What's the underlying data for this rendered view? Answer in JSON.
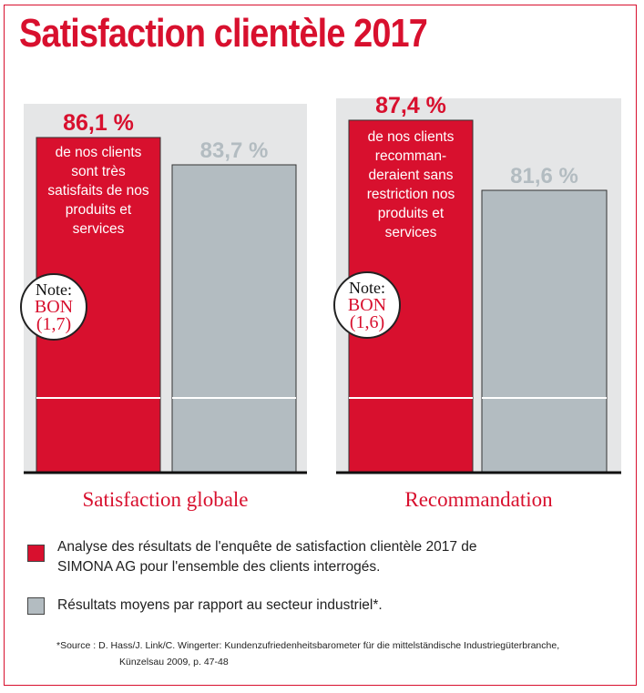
{
  "title": "Satisfaction clientèle 2017",
  "colors": {
    "simona": "#d8102e",
    "industry": "#b3bcc1",
    "panel": "#e5e6e7"
  },
  "chart_data": {
    "type": "bar",
    "categories": [
      "Satisfaction globale",
      "Recommandation"
    ],
    "series": [
      {
        "values": [
          86.1,
          87.4
        ]
      },
      {
        "values": [
          83.7,
          81.6
        ]
      }
    ],
    "value_labels": [
      [
        "86,1 %",
        "83,7 %"
      ],
      [
        "87,4 %",
        "81,6 %"
      ]
    ],
    "descriptions": [
      [
        "de nos clients",
        "sont très",
        "satisfaits de nos",
        "produits et",
        "services"
      ],
      [
        "de nos clients",
        "recomman-",
        "deraient sans",
        "restriction nos",
        "produits et",
        "services"
      ]
    ],
    "notes": [
      {
        "label": "Note:",
        "grade": "BON",
        "score": "(1,7)"
      },
      {
        "label": "Note:",
        "grade": "BON",
        "score": "(1,6)"
      }
    ],
    "axis_break": true
  },
  "legend": [
    {
      "text_lines": [
        "Analyse des résultats de l'enquête de satisfaction clientèle 2017 de",
        "SIMONA AG pour l'ensemble des clients interrogés."
      ]
    },
    {
      "text_lines": [
        "Résultats moyens par rapport au secteur industriel*."
      ]
    }
  ],
  "source": {
    "line1": "*Source : D. Hass/J. Link/C. Wingerter: Kundenzufriedenheitsbarometer für die mittelständische Industriegüterbranche,",
    "line2": "Künzelsau 2009, p. 47-48"
  }
}
